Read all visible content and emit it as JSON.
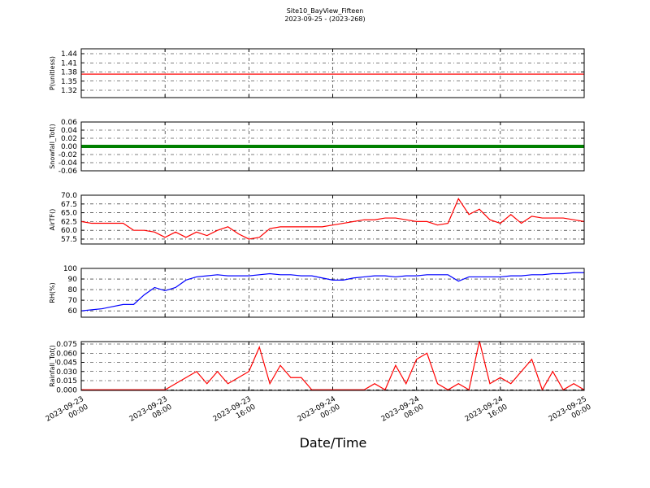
{
  "chart_data": [
    {
      "type": "line",
      "title": "Site10_BayView_Fifteen",
      "subtitle": "2023-09-25 - (2023-268)",
      "ylabel": "P(unitless)",
      "color": "#ff0000",
      "x": [
        "2023-09-23 00:00",
        "2023-09-23 01:00",
        "2023-09-23 02:00",
        "2023-09-23 03:00",
        "2023-09-23 04:00",
        "2023-09-23 05:00",
        "2023-09-23 06:00",
        "2023-09-23 07:00",
        "2023-09-23 08:00",
        "2023-09-23 09:00",
        "2023-09-23 10:00",
        "2023-09-23 11:00",
        "2023-09-23 12:00",
        "2023-09-23 13:00",
        "2023-09-23 14:00",
        "2023-09-23 15:00",
        "2023-09-23 16:00",
        "2023-09-23 17:00",
        "2023-09-23 18:00",
        "2023-09-23 19:00",
        "2023-09-23 20:00",
        "2023-09-23 21:00",
        "2023-09-23 22:00",
        "2023-09-23 23:00",
        "2023-09-24 00:00",
        "2023-09-24 01:00",
        "2023-09-24 02:00",
        "2023-09-24 03:00",
        "2023-09-24 04:00",
        "2023-09-24 05:00",
        "2023-09-24 06:00",
        "2023-09-24 07:00",
        "2023-09-24 08:00",
        "2023-09-24 09:00",
        "2023-09-24 10:00",
        "2023-09-24 11:00",
        "2023-09-24 12:00",
        "2023-09-24 13:00",
        "2023-09-24 14:00",
        "2023-09-24 15:00",
        "2023-09-24 16:00",
        "2023-09-24 17:00",
        "2023-09-24 18:00",
        "2023-09-24 19:00",
        "2023-09-24 20:00",
        "2023-09-24 21:00",
        "2023-09-24 22:00",
        "2023-09-24 23:00",
        "2023-09-25 00:00"
      ],
      "values": [
        1.373,
        1.373,
        1.373,
        1.373,
        1.373,
        1.373,
        1.373,
        1.373,
        1.373,
        1.373,
        1.373,
        1.373,
        1.373,
        1.373,
        1.373,
        1.373,
        1.373,
        1.373,
        1.373,
        1.373,
        1.373,
        1.373,
        1.373,
        1.373,
        1.373,
        1.373,
        1.373,
        1.373,
        1.373,
        1.373,
        1.373,
        1.373,
        1.373,
        1.373,
        1.373,
        1.373,
        1.373,
        1.373,
        1.373,
        1.373,
        1.373,
        1.373,
        1.373,
        1.373,
        1.373,
        1.373,
        1.373,
        1.373,
        1.373
      ],
      "xlim": [
        "2023-09-23 00:00",
        "2023-09-25 00:00"
      ],
      "xticks": [
        "2023-09-23 00:00",
        "2023-09-23 08:00",
        "2023-09-23 16:00",
        "2023-09-24 00:00",
        "2023-09-24 08:00",
        "2023-09-24 16:00",
        "2023-09-25 00:00"
      ],
      "ylim": [
        1.296,
        1.456
      ],
      "yticks": [
        1.32,
        1.35,
        1.38,
        1.41,
        1.44
      ],
      "grid": true
    },
    {
      "type": "line",
      "ylabel": "Snowfall_Tot()",
      "color": "#008000",
      "x": [
        "2023-09-23 00:00",
        "2023-09-23 01:00",
        "2023-09-23 02:00",
        "2023-09-23 03:00",
        "2023-09-23 04:00",
        "2023-09-23 05:00",
        "2023-09-23 06:00",
        "2023-09-23 07:00",
        "2023-09-23 08:00",
        "2023-09-23 09:00",
        "2023-09-23 10:00",
        "2023-09-23 11:00",
        "2023-09-23 12:00",
        "2023-09-23 13:00",
        "2023-09-23 14:00",
        "2023-09-23 15:00",
        "2023-09-23 16:00",
        "2023-09-23 17:00",
        "2023-09-23 18:00",
        "2023-09-23 19:00",
        "2023-09-23 20:00",
        "2023-09-23 21:00",
        "2023-09-23 22:00",
        "2023-09-23 23:00",
        "2023-09-24 00:00",
        "2023-09-24 01:00",
        "2023-09-24 02:00",
        "2023-09-24 03:00",
        "2023-09-24 04:00",
        "2023-09-24 05:00",
        "2023-09-24 06:00",
        "2023-09-24 07:00",
        "2023-09-24 08:00",
        "2023-09-24 09:00",
        "2023-09-24 10:00",
        "2023-09-24 11:00",
        "2023-09-24 12:00",
        "2023-09-24 13:00",
        "2023-09-24 14:00",
        "2023-09-24 15:00",
        "2023-09-24 16:00",
        "2023-09-24 17:00",
        "2023-09-24 18:00",
        "2023-09-24 19:00",
        "2023-09-24 20:00",
        "2023-09-24 21:00",
        "2023-09-24 22:00",
        "2023-09-24 23:00",
        "2023-09-25 00:00"
      ],
      "values": [
        0,
        0,
        0,
        0,
        0,
        0,
        0,
        0,
        0,
        0,
        0,
        0,
        0,
        0,
        0,
        0,
        0,
        0,
        0,
        0,
        0,
        0,
        0,
        0,
        0,
        0,
        0,
        0,
        0,
        0,
        0,
        0,
        0,
        0,
        0,
        0,
        0,
        0,
        0,
        0,
        0,
        0,
        0,
        0,
        0,
        0,
        0,
        0,
        0
      ],
      "xlim": [
        "2023-09-23 00:00",
        "2023-09-25 00:00"
      ],
      "xticks": [
        "2023-09-23 00:00",
        "2023-09-23 08:00",
        "2023-09-23 16:00",
        "2023-09-24 00:00",
        "2023-09-24 08:00",
        "2023-09-24 16:00",
        "2023-09-25 00:00"
      ],
      "ylim": [
        -0.06,
        0.06
      ],
      "yticks": [
        -0.06,
        -0.04,
        -0.02,
        {
          "value": 0,
          "label": "0.00"
        },
        0.02,
        0.04,
        0.06
      ],
      "grid": true
    },
    {
      "type": "line",
      "ylabel": "AirTF()",
      "color": "#ff0000",
      "x": [
        "2023-09-23 00:00",
        "2023-09-23 01:00",
        "2023-09-23 02:00",
        "2023-09-23 03:00",
        "2023-09-23 04:00",
        "2023-09-23 05:00",
        "2023-09-23 06:00",
        "2023-09-23 07:00",
        "2023-09-23 08:00",
        "2023-09-23 09:00",
        "2023-09-23 10:00",
        "2023-09-23 11:00",
        "2023-09-23 12:00",
        "2023-09-23 13:00",
        "2023-09-23 14:00",
        "2023-09-23 15:00",
        "2023-09-23 16:00",
        "2023-09-23 17:00",
        "2023-09-23 18:00",
        "2023-09-23 19:00",
        "2023-09-23 20:00",
        "2023-09-23 21:00",
        "2023-09-23 22:00",
        "2023-09-23 23:00",
        "2023-09-24 00:00",
        "2023-09-24 01:00",
        "2023-09-24 02:00",
        "2023-09-24 03:00",
        "2023-09-24 04:00",
        "2023-09-24 05:00",
        "2023-09-24 06:00",
        "2023-09-24 07:00",
        "2023-09-24 08:00",
        "2023-09-24 09:00",
        "2023-09-24 10:00",
        "2023-09-24 11:00",
        "2023-09-24 12:00",
        "2023-09-24 13:00",
        "2023-09-24 14:00",
        "2023-09-24 15:00",
        "2023-09-24 16:00",
        "2023-09-24 17:00",
        "2023-09-24 18:00",
        "2023-09-24 19:00",
        "2023-09-24 20:00",
        "2023-09-24 21:00",
        "2023-09-24 22:00",
        "2023-09-24 23:00",
        "2023-09-25 00:00"
      ],
      "values": [
        62.5,
        62,
        62,
        62,
        62,
        60,
        60,
        59.5,
        58,
        59.5,
        58,
        59.5,
        58.5,
        60,
        61,
        59,
        57.5,
        58,
        60.5,
        61,
        61,
        61,
        61,
        61,
        61.5,
        62,
        62.5,
        63,
        63,
        63.5,
        63.5,
        63,
        62.5,
        62.5,
        61.5,
        62,
        69,
        64.5,
        66,
        63,
        62,
        64.5,
        62,
        64,
        63.5,
        63.5,
        63.5,
        63,
        62.5
      ],
      "xlim": [
        "2023-09-23 00:00",
        "2023-09-25 00:00"
      ],
      "xticks": [
        "2023-09-23 00:00",
        "2023-09-23 08:00",
        "2023-09-23 16:00",
        "2023-09-24 00:00",
        "2023-09-24 08:00",
        "2023-09-24 16:00",
        "2023-09-25 00:00"
      ],
      "ylim": [
        56.1,
        70
      ],
      "yticks": [
        57.5,
        {
          "value": 60,
          "label": "60.0"
        },
        62.5,
        {
          "value": 65,
          "label": "65.0"
        },
        67.5,
        {
          "value": 70,
          "label": "70.0"
        }
      ],
      "grid": true
    },
    {
      "type": "line",
      "ylabel": "RH(%)",
      "color": "#0000ff",
      "x": [
        "2023-09-23 00:00",
        "2023-09-23 01:00",
        "2023-09-23 02:00",
        "2023-09-23 03:00",
        "2023-09-23 04:00",
        "2023-09-23 05:00",
        "2023-09-23 06:00",
        "2023-09-23 07:00",
        "2023-09-23 08:00",
        "2023-09-23 09:00",
        "2023-09-23 10:00",
        "2023-09-23 11:00",
        "2023-09-23 12:00",
        "2023-09-23 13:00",
        "2023-09-23 14:00",
        "2023-09-23 15:00",
        "2023-09-23 16:00",
        "2023-09-23 17:00",
        "2023-09-23 18:00",
        "2023-09-23 19:00",
        "2023-09-23 20:00",
        "2023-09-23 21:00",
        "2023-09-23 22:00",
        "2023-09-23 23:00",
        "2023-09-24 00:00",
        "2023-09-24 01:00",
        "2023-09-24 02:00",
        "2023-09-24 03:00",
        "2023-09-24 04:00",
        "2023-09-24 05:00",
        "2023-09-24 06:00",
        "2023-09-24 07:00",
        "2023-09-24 08:00",
        "2023-09-24 09:00",
        "2023-09-24 10:00",
        "2023-09-24 11:00",
        "2023-09-24 12:00",
        "2023-09-24 13:00",
        "2023-09-24 14:00",
        "2023-09-24 15:00",
        "2023-09-24 16:00",
        "2023-09-24 17:00",
        "2023-09-24 18:00",
        "2023-09-24 19:00",
        "2023-09-24 20:00",
        "2023-09-24 21:00",
        "2023-09-24 22:00",
        "2023-09-24 23:00",
        "2023-09-25 00:00"
      ],
      "values": [
        60,
        61,
        62,
        64,
        66,
        66,
        75,
        82,
        79,
        82,
        89,
        92,
        93,
        94,
        93,
        93,
        93,
        94,
        95,
        94,
        94,
        93,
        93,
        91,
        89,
        89,
        91,
        92,
        93,
        93,
        92,
        93,
        93,
        94,
        94,
        94,
        88,
        92,
        92,
        92,
        92,
        93,
        93,
        94,
        94,
        95,
        95,
        96,
        96
      ],
      "xlim": [
        "2023-09-23 00:00",
        "2023-09-25 00:00"
      ],
      "xticks": [
        "2023-09-23 00:00",
        "2023-09-23 08:00",
        "2023-09-23 16:00",
        "2023-09-24 00:00",
        "2023-09-24 08:00",
        "2023-09-24 16:00",
        "2023-09-25 00:00"
      ],
      "ylim": [
        54,
        100
      ],
      "yticks": [
        60,
        70,
        80,
        90,
        100
      ],
      "grid": true
    },
    {
      "type": "line",
      "ylabel": "Rainfall_Tot()",
      "xlabel": "Date/Time",
      "color": "#ff0000",
      "x": [
        "2023-09-23 00:00",
        "2023-09-23 01:00",
        "2023-09-23 02:00",
        "2023-09-23 03:00",
        "2023-09-23 04:00",
        "2023-09-23 05:00",
        "2023-09-23 06:00",
        "2023-09-23 07:00",
        "2023-09-23 08:00",
        "2023-09-23 09:00",
        "2023-09-23 10:00",
        "2023-09-23 11:00",
        "2023-09-23 12:00",
        "2023-09-23 13:00",
        "2023-09-23 14:00",
        "2023-09-23 15:00",
        "2023-09-23 16:00",
        "2023-09-23 17:00",
        "2023-09-23 18:00",
        "2023-09-23 19:00",
        "2023-09-23 20:00",
        "2023-09-23 21:00",
        "2023-09-23 22:00",
        "2023-09-23 23:00",
        "2023-09-24 00:00",
        "2023-09-24 01:00",
        "2023-09-24 02:00",
        "2023-09-24 03:00",
        "2023-09-24 04:00",
        "2023-09-24 05:00",
        "2023-09-24 06:00",
        "2023-09-24 07:00",
        "2023-09-24 08:00",
        "2023-09-24 09:00",
        "2023-09-24 10:00",
        "2023-09-24 11:00",
        "2023-09-24 12:00",
        "2023-09-24 13:00",
        "2023-09-24 14:00",
        "2023-09-24 15:00",
        "2023-09-24 16:00",
        "2023-09-24 17:00",
        "2023-09-24 18:00",
        "2023-09-24 19:00",
        "2023-09-24 20:00",
        "2023-09-24 21:00",
        "2023-09-24 22:00",
        "2023-09-24 23:00",
        "2023-09-25 00:00"
      ],
      "values": [
        0,
        0,
        0,
        0,
        0,
        0,
        0,
        0,
        0,
        0.01,
        0.02,
        0.03,
        0.01,
        0.03,
        0.01,
        0.02,
        0.03,
        0.07,
        0.01,
        0.04,
        0.02,
        0.02,
        0,
        0,
        0,
        0,
        0,
        0,
        0.01,
        0,
        0.04,
        0.01,
        0.05,
        0.06,
        0.01,
        0,
        0.01,
        0,
        0.08,
        0.01,
        0.02,
        0.01,
        0.03,
        0.05,
        0,
        0.03,
        0,
        0.01,
        0
      ],
      "xlim": [
        "2023-09-23 00:00",
        "2023-09-25 00:00"
      ],
      "xticks": [
        "2023-09-23 00:00",
        "2023-09-23 08:00",
        "2023-09-23 16:00",
        "2023-09-24 00:00",
        "2023-09-24 08:00",
        "2023-09-24 16:00",
        "2023-09-25 00:00"
      ],
      "ylim": [
        -0.001,
        0.079
      ],
      "yticks": [
        {
          "value": 0,
          "label": "0.000"
        },
        0.015,
        {
          "value": 0.03,
          "label": "0.030"
        },
        0.045,
        {
          "value": 0.06,
          "label": "0.060"
        },
        0.075
      ],
      "grid": true
    }
  ]
}
